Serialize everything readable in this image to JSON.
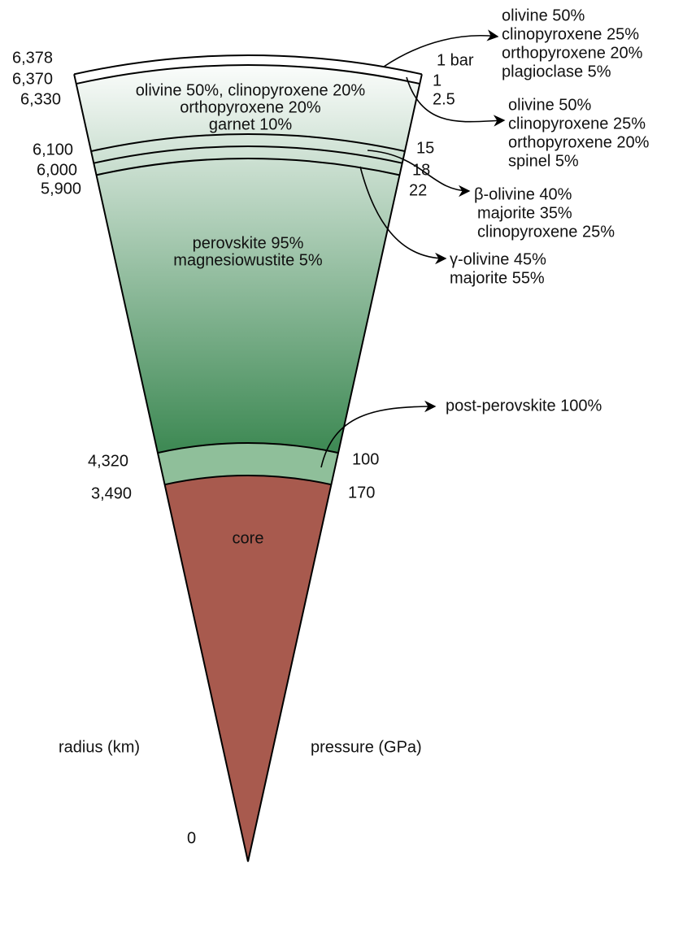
{
  "radius_labels": [
    "6,378",
    "6,370",
    "6,330",
    "6,100",
    "6,000",
    "5,900",
    "4,320",
    "3,490",
    "0"
  ],
  "pressure_labels": [
    "1 bar",
    "1",
    "2.5",
    "15",
    "18",
    "22",
    "100",
    "170"
  ],
  "layers": [
    {
      "lines": [
        "olivine 50%, clinopyroxene 20%",
        "orthopyroxene 20%",
        "garnet 10%"
      ]
    },
    {
      "lines": [
        "perovskite 95%",
        "magnesiowustite 5%"
      ]
    },
    {
      "lines": [
        "core"
      ]
    }
  ],
  "callouts": [
    {
      "lines": [
        "olivine 50%",
        "clinopyroxene 25%",
        "orthopyroxene 20%",
        "plagioclase 5%"
      ]
    },
    {
      "lines": [
        "olivine 50%",
        "clinopyroxene 25%",
        "orthopyroxene 20%",
        "spinel 5%"
      ]
    },
    {
      "lines": [
        "β-olivine 40%",
        "majorite 35%",
        "clinopyroxene 25%"
      ]
    },
    {
      "lines": [
        "γ-olivine 45%",
        "majorite 55%"
      ]
    },
    {
      "lines": [
        "post-perovskite 100%"
      ]
    }
  ],
  "axis_labels": {
    "radius": "radius (km)",
    "pressure": "pressure (GPa)"
  }
}
